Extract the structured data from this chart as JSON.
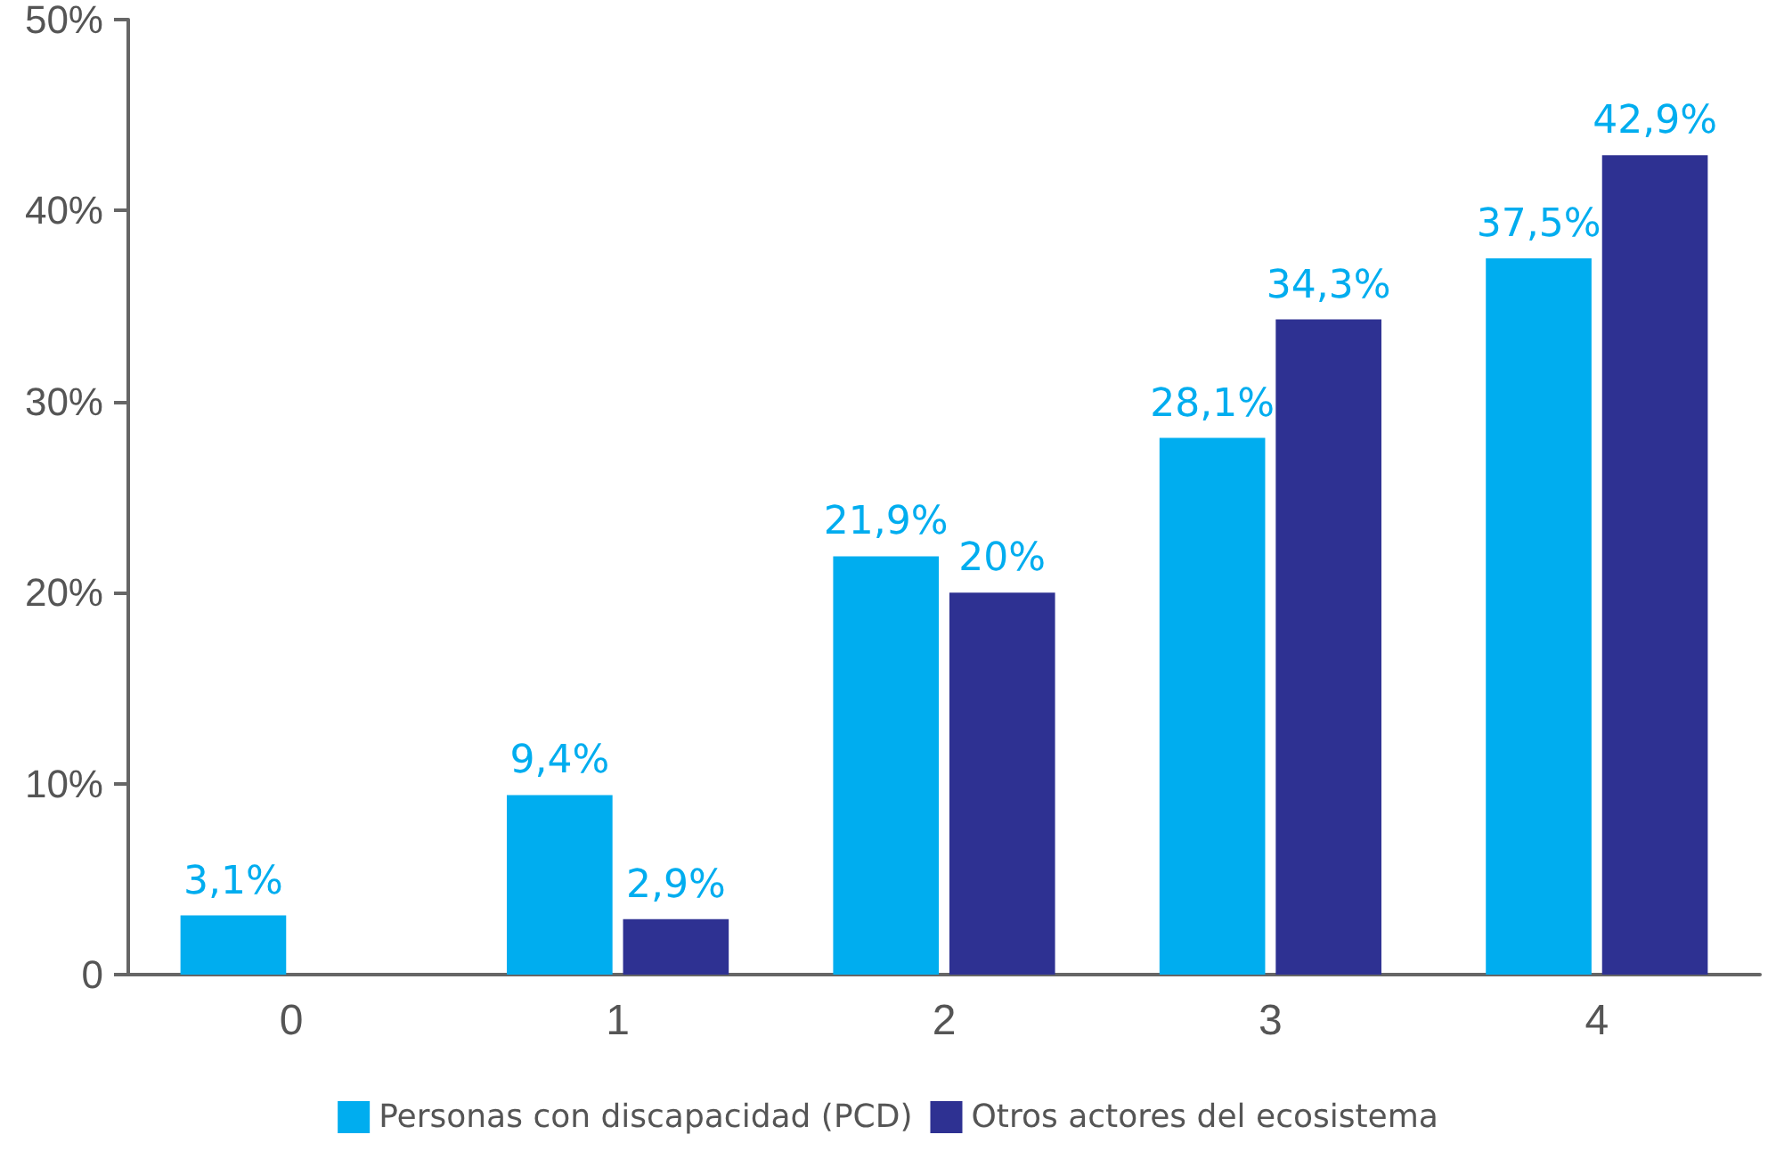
{
  "chart_data": {
    "type": "bar",
    "categories": [
      "0",
      "1",
      "2",
      "3",
      "4"
    ],
    "series": [
      {
        "name": "Personas con discapacidad (PCD)",
        "color": "#00adef",
        "values": [
          3.1,
          9.4,
          21.9,
          28.1,
          37.5
        ],
        "value_labels": [
          "3,1%",
          "9,4%",
          "21,9%",
          "28,1%",
          "37,5%"
        ]
      },
      {
        "name": "Otros actores del ecosistema",
        "color": "#2e3192",
        "values": [
          0,
          2.9,
          20,
          34.3,
          42.9
        ],
        "value_labels": [
          null,
          "2,9%",
          "20%",
          "34,3%",
          "42,9%"
        ]
      }
    ],
    "ylim": [
      0,
      50
    ],
    "yticks": [
      0,
      {
        "value": 10,
        "label": "10%"
      },
      {
        "value": 20,
        "label": "20%"
      },
      {
        "value": 30,
        "label": "30%"
      },
      {
        "value": 40,
        "label": "40%"
      },
      {
        "value": 50,
        "label": "50%"
      }
    ],
    "grid": false,
    "legend": "bottom"
  }
}
